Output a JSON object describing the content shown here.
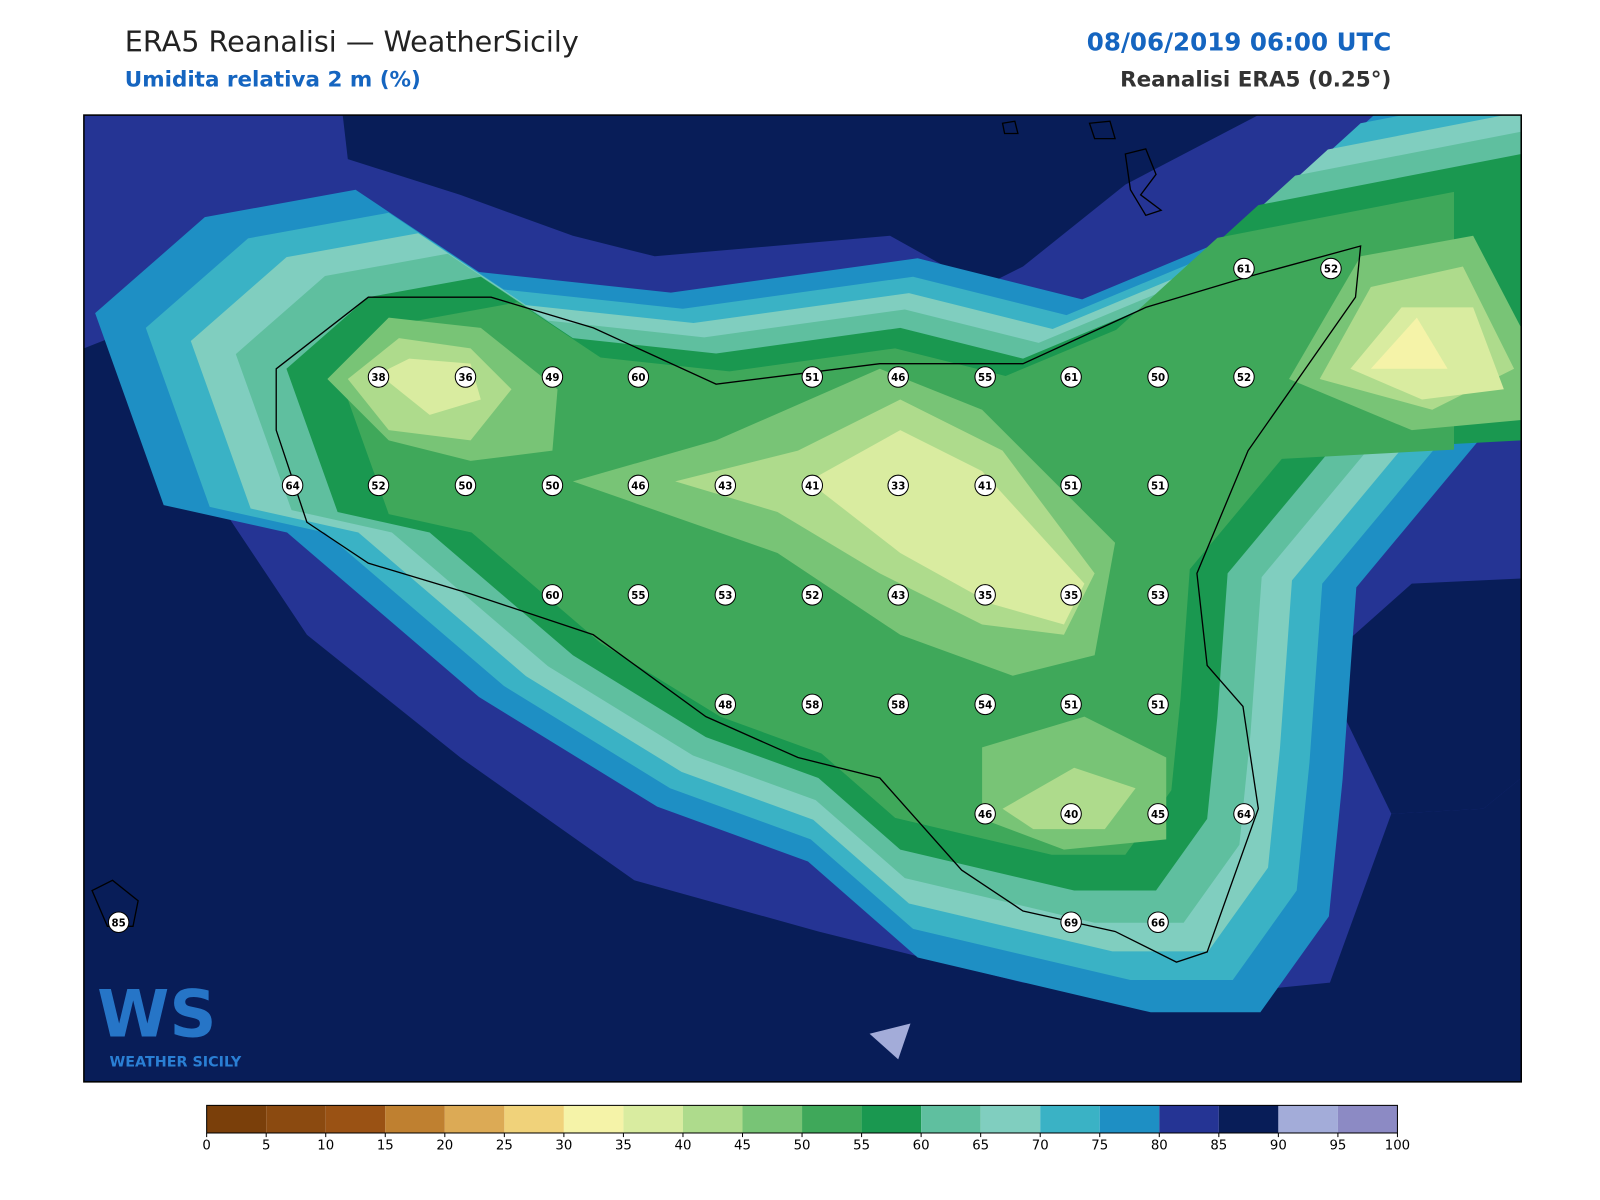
{
  "header": {
    "title": "ERA5 Reanalisi — WeatherSicily",
    "subtitle": "Umidita relativa 2 m (%)",
    "datetime": "08/06/2019 06:00 UTC",
    "source": "Reanalisi ERA5 (0.25°)"
  },
  "stations": [
    61,
    52,
    38,
    36,
    49,
    60,
    51,
    46,
    55,
    61,
    50,
    52,
    64,
    52,
    50,
    50,
    46,
    43,
    41,
    33,
    41,
    51,
    51,
    60,
    55,
    53,
    52,
    43,
    35,
    35,
    53,
    48,
    58,
    58,
    54,
    51,
    51,
    46,
    40,
    45,
    64,
    85,
    69,
    66
  ],
  "colorbar": {
    "ticks": [
      0,
      5,
      10,
      15,
      20,
      25,
      30,
      35,
      40,
      45,
      50,
      55,
      60,
      65,
      70,
      75,
      80,
      85,
      90,
      95,
      100
    ],
    "colors": [
      "#7a3f0a",
      "#8b4a10",
      "#9a5214",
      "#bf8030",
      "#dcaa55",
      "#f0d27a",
      "#f5f3a8",
      "#d9eca0",
      "#aedb8c",
      "#78c476",
      "#3fa85a",
      "#1a9850",
      "#5fbf9f",
      "#80cebf",
      "#3ab2c5",
      "#1e8fc4",
      "#253494",
      "#081d58",
      "#a3acd9",
      "#8c8ac4"
    ]
  },
  "logo": {
    "mark": "WS",
    "text": "WEATHER SICILY"
  }
}
